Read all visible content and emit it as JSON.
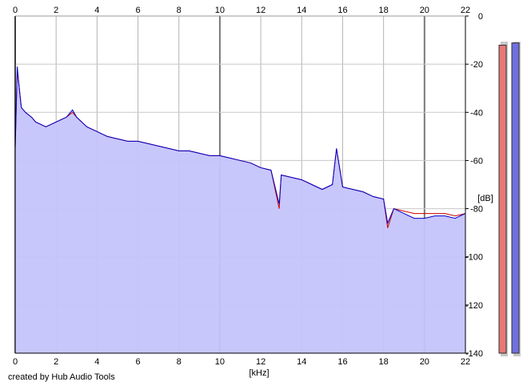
{
  "chart_data": {
    "type": "line",
    "title": "",
    "xlabel": "[kHz]",
    "ylabel": "[dB]",
    "xlim": [
      0,
      22
    ],
    "ylim": [
      -140,
      0
    ],
    "x_ticks": [
      0,
      2,
      4,
      6,
      8,
      10,
      12,
      14,
      16,
      18,
      20,
      22
    ],
    "y_ticks": [
      0,
      -20,
      -40,
      -60,
      -80,
      -100,
      -120,
      -140
    ],
    "grid": true,
    "legend": "none",
    "series": [
      {
        "color": "#cc0000",
        "x": [
          0,
          0.1,
          0.2,
          0.3,
          0.5,
          0.8,
          1.0,
          1.5,
          2.0,
          2.5,
          2.8,
          3.0,
          3.5,
          4.0,
          4.5,
          5.0,
          5.5,
          6.0,
          6.5,
          7.0,
          7.5,
          8.0,
          8.5,
          9.0,
          9.5,
          10.0,
          10.5,
          11.0,
          11.5,
          12.0,
          12.5,
          12.9,
          13.0,
          13.5,
          14.0,
          14.5,
          15.0,
          15.5,
          15.7,
          16.0,
          16.5,
          17.0,
          17.5,
          18.0,
          18.2,
          18.5,
          19.0,
          19.5,
          20.0,
          20.5,
          21.0,
          21.5,
          22.0
        ],
        "y": [
          -55,
          -22,
          -30,
          -38,
          -40,
          -42,
          -44,
          -46,
          -44,
          -42,
          -40,
          -42,
          -46,
          -48,
          -50,
          -51,
          -52,
          -52,
          -53,
          -54,
          -55,
          -56,
          -56,
          -57,
          -58,
          -58,
          -59,
          -60,
          -61,
          -63,
          -64,
          -80,
          -66,
          -67,
          -68,
          -70,
          -72,
          -70,
          -55,
          -71,
          -72,
          -73,
          -75,
          -76,
          -88,
          -80,
          -81,
          -82,
          -82,
          -82,
          -82,
          -83,
          -82
        ]
      },
      {
        "color": "#0000cc",
        "x": [
          0,
          0.1,
          0.2,
          0.3,
          0.5,
          0.8,
          1.0,
          1.5,
          2.0,
          2.5,
          2.8,
          3.0,
          3.5,
          4.0,
          4.5,
          5.0,
          5.5,
          6.0,
          6.5,
          7.0,
          7.5,
          8.0,
          8.5,
          9.0,
          9.5,
          10.0,
          10.5,
          11.0,
          11.5,
          12.0,
          12.5,
          12.9,
          13.0,
          13.5,
          14.0,
          14.5,
          15.0,
          15.5,
          15.7,
          16.0,
          16.5,
          17.0,
          17.5,
          18.0,
          18.2,
          18.5,
          19.0,
          19.5,
          20.0,
          20.5,
          21.0,
          21.5,
          22.0
        ],
        "y": [
          -55,
          -21,
          -30,
          -38,
          -40,
          -42,
          -44,
          -46,
          -44,
          -42,
          -39,
          -42,
          -46,
          -48,
          -50,
          -51,
          -52,
          -52,
          -53,
          -54,
          -55,
          -56,
          -56,
          -57,
          -58,
          -58,
          -59,
          -60,
          -61,
          -63,
          -64,
          -78,
          -66,
          -67,
          -68,
          -70,
          -72,
          -70,
          -55,
          -71,
          -72,
          -73,
          -75,
          -76,
          -86,
          -80,
          -82,
          -84,
          -84,
          -83,
          -83,
          -84,
          -82
        ]
      }
    ],
    "level_meters": [
      {
        "color": "#e87878",
        "value": -3
      },
      {
        "color": "#7070e0",
        "value": -2
      }
    ]
  },
  "credit": "created by Hub Audio Tools"
}
